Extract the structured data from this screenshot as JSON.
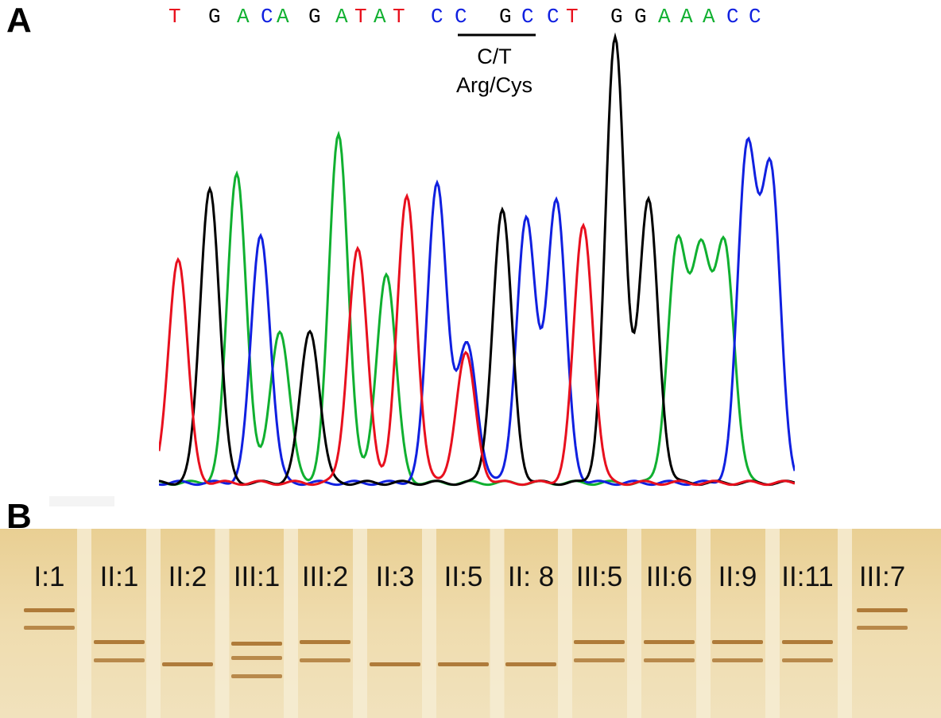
{
  "figure": {
    "panel_a_label": "A",
    "panel_b_label": "B"
  },
  "panel_a": {
    "sequence": [
      {
        "base": "T",
        "color": "#e8101e"
      },
      {
        "base": "G",
        "color": "#000000"
      },
      {
        "base": "A",
        "color": "#10b030"
      },
      {
        "base": "C",
        "color": "#1020e0"
      },
      {
        "base": "A",
        "color": "#10b030"
      },
      {
        "base": "G",
        "color": "#000000"
      },
      {
        "base": "A",
        "color": "#10b030"
      },
      {
        "base": "T",
        "color": "#e8101e"
      },
      {
        "base": "A",
        "color": "#10b030"
      },
      {
        "base": "T",
        "color": "#e8101e"
      },
      {
        "base": "C",
        "color": "#1020e0"
      },
      {
        "base": "C",
        "color": "#1020e0"
      },
      {
        "base": "G",
        "color": "#000000"
      },
      {
        "base": "C",
        "color": "#1020e0"
      },
      {
        "base": "C",
        "color": "#1020e0"
      },
      {
        "base": "T",
        "color": "#e8101e"
      },
      {
        "base": "G",
        "color": "#000000"
      },
      {
        "base": "G",
        "color": "#000000"
      },
      {
        "base": "A",
        "color": "#10b030"
      },
      {
        "base": "A",
        "color": "#10b030"
      },
      {
        "base": "A",
        "color": "#10b030"
      },
      {
        "base": "C",
        "color": "#1020e0"
      },
      {
        "base": "C",
        "color": "#1020e0"
      }
    ],
    "mutation_label": "C/T",
    "amino_acid_label": "Arg/Cys",
    "trace_colors": {
      "A": "#10b030",
      "C": "#1020e0",
      "G": "#000000",
      "T": "#e8101e"
    },
    "peaks": [
      {
        "base": "T",
        "height": 0.47
      },
      {
        "base": "G",
        "height": 0.62
      },
      {
        "base": "A",
        "height": 0.65
      },
      {
        "base": "C",
        "height": 0.52
      },
      {
        "base": "A",
        "height": 0.32
      },
      {
        "base": "G",
        "height": 0.32
      },
      {
        "base": "A",
        "height": 0.73
      },
      {
        "base": "T",
        "height": 0.49
      },
      {
        "base": "A",
        "height": 0.44
      },
      {
        "base": "T",
        "height": 0.6
      },
      {
        "base": "C",
        "height": 0.63
      },
      {
        "base": "C",
        "height": 0.29
      },
      {
        "base": "T",
        "height": 0.27
      },
      {
        "base": "G",
        "height": 0.57
      },
      {
        "base": "C",
        "height": 0.55
      },
      {
        "base": "C",
        "height": 0.59
      },
      {
        "base": "T",
        "height": 0.54
      },
      {
        "base": "G",
        "height": 0.93
      },
      {
        "base": "G",
        "height": 0.59
      },
      {
        "base": "A",
        "height": 0.49
      },
      {
        "base": "A",
        "height": 0.47
      },
      {
        "base": "A",
        "height": 0.49
      },
      {
        "base": "C",
        "height": 0.69
      },
      {
        "base": "C",
        "height": 0.64
      }
    ]
  },
  "panel_b": {
    "lanes": [
      {
        "label": "I:1",
        "bands": 2
      },
      {
        "label": "II:1",
        "bands": 2
      },
      {
        "label": "II:2",
        "bands": 1
      },
      {
        "label": "III:1",
        "bands": 3
      },
      {
        "label": "III:2",
        "bands": 2
      },
      {
        "label": "II:3",
        "bands": 1
      },
      {
        "label": "II:5",
        "bands": 1
      },
      {
        "label": "II: 8",
        "bands": 1
      },
      {
        "label": "III:5",
        "bands": 2
      },
      {
        "label": "III:6",
        "bands": 2
      },
      {
        "label": "II:9",
        "bands": 2
      },
      {
        "label": "II:11",
        "bands": 2
      },
      {
        "label": "III:7",
        "bands": 2
      }
    ],
    "gel_color": "#ecd7a6",
    "band_color": "#9a5a12"
  }
}
